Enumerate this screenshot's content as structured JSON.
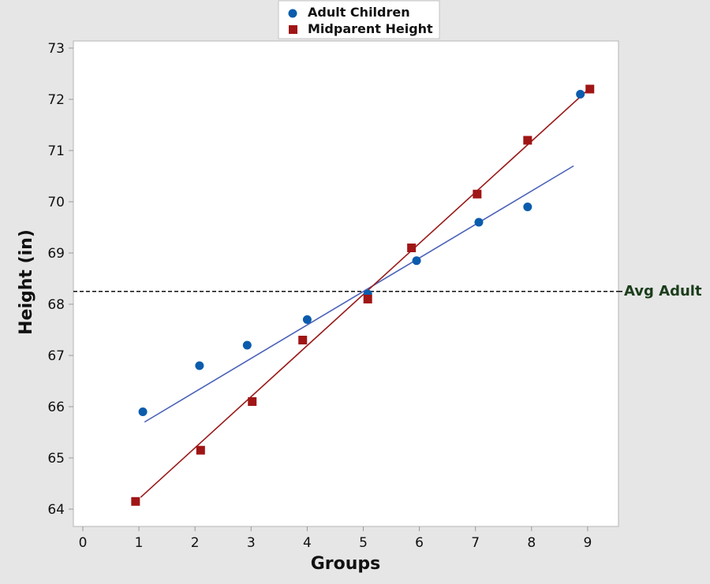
{
  "chart_data": {
    "type": "scatter",
    "title": "",
    "xlabel": "Groups",
    "ylabel": "Height (in)",
    "xlim": [
      0,
      9.5
    ],
    "ylim": [
      63.7,
      73.1
    ],
    "x_ticks": [
      0,
      1,
      2,
      3,
      4,
      5,
      6,
      7,
      8,
      9
    ],
    "y_ticks": [
      64,
      65,
      66,
      67,
      68,
      69,
      70,
      71,
      72,
      73
    ],
    "grid": false,
    "legend_position": "top-center",
    "series": [
      {
        "name": "Adult Children",
        "marker": "circle",
        "color": "#0b5cad",
        "x": [
          1.07,
          2.08,
          2.93,
          4.0,
          5.08,
          5.95,
          7.06,
          7.93,
          8.87
        ],
        "y": [
          65.9,
          66.8,
          67.2,
          67.7,
          68.2,
          68.85,
          69.6,
          69.9,
          72.1
        ],
        "fit_line": {
          "color": "#4a62b8",
          "x": [
            1.1,
            8.75
          ],
          "y": [
            65.7,
            70.7
          ]
        }
      },
      {
        "name": "Midparent Height",
        "marker": "square",
        "color": "#a01515",
        "x": [
          0.94,
          2.1,
          3.02,
          3.92,
          5.08,
          5.86,
          7.03,
          7.93,
          9.04
        ],
        "y": [
          64.15,
          65.15,
          66.1,
          67.3,
          68.1,
          69.1,
          70.15,
          71.2,
          72.2
        ],
        "fit_line": {
          "color": "#9a1818",
          "x": [
            1.03,
            9.02
          ],
          "y": [
            64.23,
            72.2
          ]
        }
      }
    ],
    "annotations": [
      {
        "type": "hline",
        "y": 68.25,
        "style": "dashed",
        "color": "#111111",
        "label": "Avg Adult",
        "label_color": "#1b3d1b"
      }
    ]
  }
}
